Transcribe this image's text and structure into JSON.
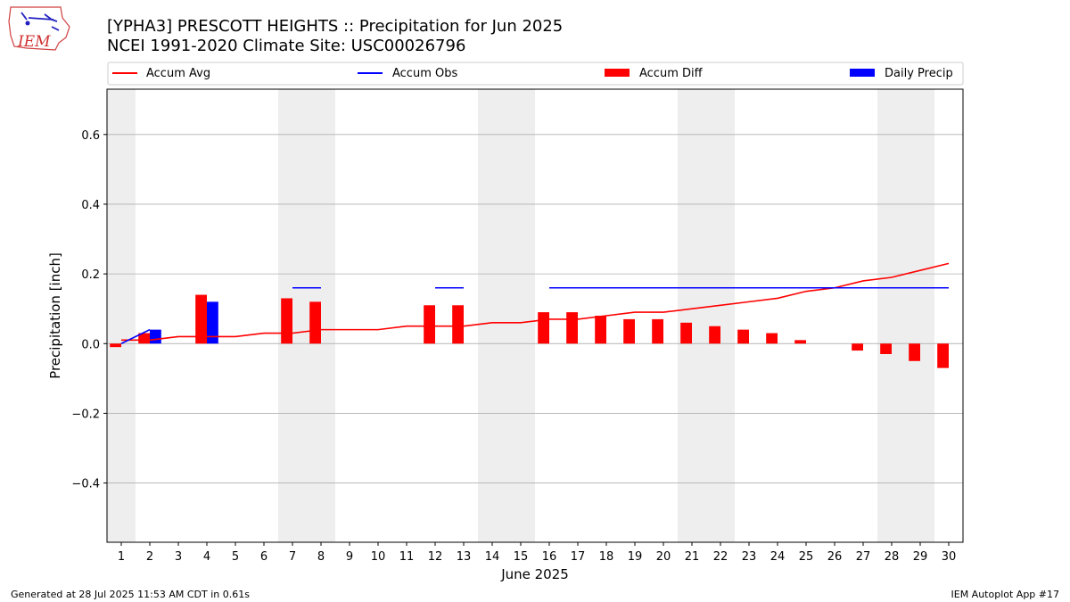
{
  "header": {
    "title_line1": "[YPHA3] PRESCOTT HEIGHTS :: Precipitation for Jun 2025",
    "title_line2": "NCEI 1991-2020 Climate Site: USC00026796"
  },
  "logo": {
    "text": "IEM"
  },
  "footer": {
    "generated": "Generated at 28 Jul 2025 11:53 AM CDT in 0.61s",
    "app": "IEM Autoplot App #17"
  },
  "colors": {
    "avg": "#ff0000",
    "obs": "#0000ff",
    "diff": "#ff0000",
    "daily": "#0000ff",
    "weekend_shade": "#eeeeee",
    "grid": "#b0b0b0"
  },
  "chart_data": {
    "type": "bar",
    "xlabel": "June 2025",
    "ylabel": "Precipitation [inch]",
    "xlim": [
      0.5,
      30.5
    ],
    "ylim": [
      -0.57,
      0.73
    ],
    "yticks": [
      -0.4,
      -0.2,
      0.0,
      0.2,
      0.4,
      0.6
    ],
    "ytick_labels": [
      "−0.4",
      "−0.2",
      "0.0",
      "0.2",
      "0.4",
      "0.6"
    ],
    "grid": true,
    "legend_position": "top",
    "days": [
      1,
      2,
      3,
      4,
      5,
      6,
      7,
      8,
      9,
      10,
      11,
      12,
      13,
      14,
      15,
      16,
      17,
      18,
      19,
      20,
      21,
      22,
      23,
      24,
      25,
      26,
      27,
      28,
      29,
      30
    ],
    "shaded_days": [
      [
        0.5,
        1.5
      ],
      [
        6.5,
        8.5
      ],
      [
        13.5,
        15.5
      ],
      [
        20.5,
        22.5
      ],
      [
        27.5,
        29.5
      ]
    ],
    "series": [
      {
        "name": "Accum Avg",
        "kind": "line",
        "values": [
          0.01,
          0.01,
          0.02,
          0.02,
          0.02,
          0.03,
          0.03,
          0.04,
          0.04,
          0.04,
          0.05,
          0.05,
          0.05,
          0.06,
          0.06,
          0.07,
          0.07,
          0.08,
          0.09,
          0.09,
          0.1,
          0.11,
          0.12,
          0.13,
          0.15,
          0.16,
          0.18,
          0.19,
          0.21,
          0.23
        ]
      },
      {
        "name": "Accum Obs",
        "kind": "step",
        "values": [
          0.0,
          0.04,
          0.04,
          0.16,
          0.16,
          0.16,
          0.16,
          0.16,
          0.16,
          0.16,
          0.16,
          0.16,
          0.16,
          0.16,
          0.16,
          0.16,
          0.16,
          0.16,
          0.16,
          0.16,
          0.16,
          0.16,
          0.16,
          0.16,
          0.16,
          0.16,
          0.16,
          0.16,
          0.16,
          0.16
        ]
      },
      {
        "name": "Accum Diff",
        "kind": "bar",
        "values": [
          -0.01,
          0.03,
          null,
          0.14,
          null,
          null,
          0.13,
          0.12,
          null,
          null,
          null,
          0.11,
          0.11,
          null,
          null,
          0.09,
          0.09,
          0.08,
          0.07,
          0.07,
          0.06,
          0.05,
          0.04,
          0.03,
          0.01,
          null,
          -0.02,
          -0.03,
          -0.05,
          -0.07
        ]
      },
      {
        "name": "Daily Precip",
        "kind": "bar",
        "values": [
          0,
          0.04,
          0,
          0.12,
          0,
          0,
          0,
          0,
          0,
          0,
          0,
          0,
          0,
          0,
          0,
          0,
          0,
          0,
          0,
          0,
          0,
          0,
          0,
          0,
          0,
          0,
          0,
          0,
          0,
          0
        ]
      }
    ]
  }
}
